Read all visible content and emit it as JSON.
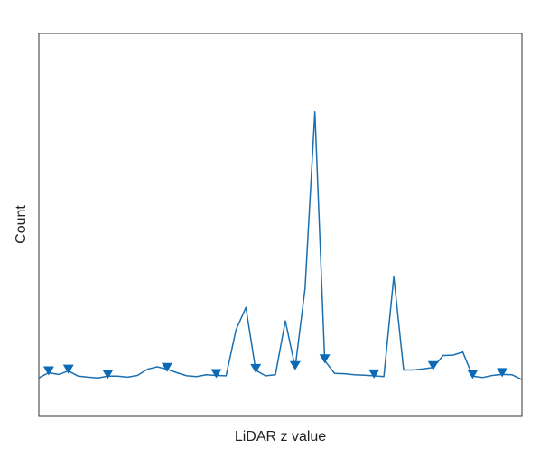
{
  "chart_data": {
    "type": "line",
    "title": "",
    "xlabel": "LiDAR z value",
    "ylabel": "Count",
    "xlim": [
      0,
      49
    ],
    "ylim": [
      0,
      100
    ],
    "grid": false,
    "line_color": "#1a6fb0",
    "marker_color": "#0b6ab8",
    "x": [
      0,
      1,
      2,
      3,
      4,
      5,
      6,
      7,
      8,
      9,
      10,
      11,
      12,
      13,
      14,
      15,
      16,
      17,
      18,
      19,
      20,
      21,
      22,
      23,
      24,
      25,
      26,
      27,
      28,
      29,
      30,
      31,
      32,
      33,
      34,
      35,
      36,
      37,
      38,
      39,
      40,
      41,
      42,
      43,
      44,
      45,
      46,
      47,
      48,
      49
    ],
    "values": [
      11,
      12.5,
      12,
      13,
      11.5,
      11.2,
      11,
      11.5,
      11.5,
      11.2,
      11.7,
      13.5,
      14.2,
      13.5,
      12.5,
      11.6,
      11.4,
      11.9,
      11.7,
      11.6,
      25,
      31.5,
      13.2,
      11.6,
      11.9,
      27.6,
      14,
      37,
      88.5,
      16,
      12.3,
      12.2,
      11.9,
      11.8,
      11.6,
      11.4,
      40.5,
      13.3,
      13.3,
      13.6,
      14,
      17.5,
      17.6,
      18.5,
      11.5,
      11.1,
      11.7,
      12,
      11.9,
      10.5
    ],
    "peaks_x": [
      1,
      3,
      7,
      13,
      18,
      22,
      26,
      29,
      34,
      40,
      44,
      47
    ]
  }
}
